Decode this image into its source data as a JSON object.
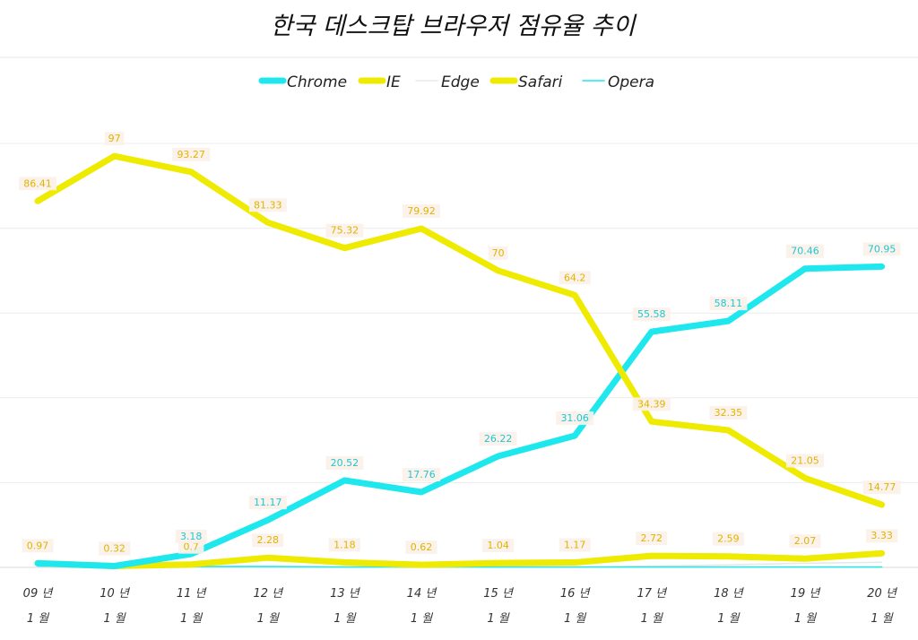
{
  "chart_data": {
    "type": "line",
    "title": "한국 데스크탑 브라우저 점유율 추이",
    "categories": [
      [
        "09 년",
        "1 월"
      ],
      [
        "10 년",
        "1 월"
      ],
      [
        "11 년",
        "1 월"
      ],
      [
        "12 년",
        "1 월"
      ],
      [
        "13 년",
        "1 월"
      ],
      [
        "14 년",
        "1 월"
      ],
      [
        "15 년",
        "1 월"
      ],
      [
        "16 년",
        "1 월"
      ],
      [
        "17 년",
        "1 월"
      ],
      [
        "18 년",
        "1 월"
      ],
      [
        "19 년",
        "1 월"
      ],
      [
        "20 년",
        "1 월"
      ]
    ],
    "ylim": [
      0,
      100
    ],
    "grid": true,
    "legend_position": "top",
    "series": [
      {
        "name": "Chrome",
        "color": "#1ee8ee",
        "label_color": "#1ec8d0",
        "line": "thick",
        "values": [
          0.97,
          0.32,
          3.18,
          11.17,
          20.52,
          17.76,
          26.22,
          31.06,
          55.58,
          58.11,
          70.46,
          70.95
        ],
        "labels": [
          "",
          "",
          "3.18",
          "11.17",
          "20.52",
          "17.76",
          "26.22",
          "31.06",
          "55.58",
          "58.11",
          "70.46",
          "70.95"
        ]
      },
      {
        "name": "IE",
        "color": "#eeea00",
        "label_color": "#e0b400",
        "line": "thick",
        "values": [
          86.41,
          97,
          93.27,
          81.33,
          75.32,
          79.92,
          70,
          64.2,
          34.39,
          32.35,
          21.05,
          14.77
        ],
        "labels": [
          "86.41",
          "97",
          "93.27",
          "81.33",
          "75.32",
          "79.92",
          "70",
          "64.2",
          "34.39",
          "32.35",
          "21.05",
          "14.77"
        ]
      },
      {
        "name": "Edge",
        "color": "#e8e8e8",
        "label_color": "#aaaaaa",
        "line": "thin",
        "values": [
          0,
          0,
          0,
          0,
          0,
          0,
          0,
          0,
          0.3,
          0.6,
          1.0,
          1.2
        ],
        "labels": [
          "",
          "",
          "",
          "",
          "",
          "",
          "",
          "",
          "",
          "",
          "",
          ""
        ]
      },
      {
        "name": "Safari",
        "color": "#eeea00",
        "label_color": "#e0b400",
        "line": "thick",
        "values": [
          0.97,
          0.32,
          0.7,
          2.28,
          1.18,
          0.62,
          1.04,
          1.17,
          2.72,
          2.59,
          2.07,
          3.33
        ],
        "labels": [
          "0.97",
          "0.32",
          "0.7",
          "2.28",
          "1.18",
          "0.62",
          "1.04",
          "1.17",
          "2.72",
          "2.59",
          "2.07",
          "3.33"
        ]
      },
      {
        "name": "Opera",
        "color": "#1ee8ee",
        "label_color": "#1ec8d0",
        "line": "thin",
        "values": [
          0.3,
          0.2,
          0.2,
          0.2,
          0.1,
          0.1,
          0.1,
          0.1,
          0.1,
          0.1,
          0.1,
          0.1
        ],
        "labels": [
          "",
          "",
          "",
          "",
          "",
          "",
          "",
          "",
          "",
          "",
          "",
          ""
        ]
      }
    ]
  }
}
